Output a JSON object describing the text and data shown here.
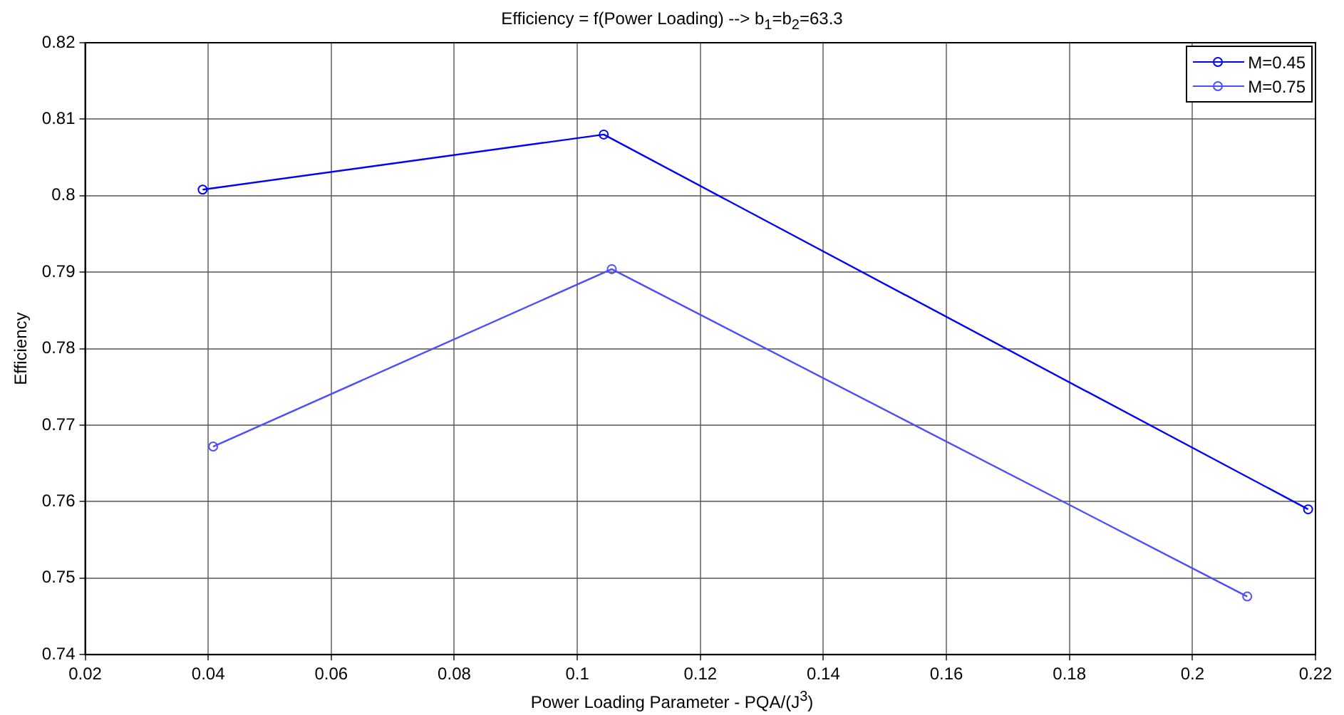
{
  "chart_data": {
    "type": "line",
    "title": "Efficiency = f(Power Loading) --> b$_{1}$=b$_{2}$=63.3",
    "xlabel": "Power Loading Parameter - PQA/(J$^{3}$)",
    "ylabel": "Efficiency",
    "xlim": [
      0.02,
      0.22
    ],
    "xticks": [
      0.02,
      0.04,
      0.06,
      0.08,
      0.1,
      0.12,
      0.14,
      0.16,
      0.18,
      0.2,
      0.22
    ],
    "ylim": [
      0.74,
      0.82
    ],
    "yticks": [
      0.74,
      0.75,
      0.76,
      0.77,
      0.78,
      0.79,
      0.8,
      0.81,
      0.82
    ],
    "grid": true,
    "legend": "top right",
    "marker": "circle",
    "line_style": "solid",
    "series": [
      {
        "name": "M=0.45",
        "color": "#0000ff",
        "x": [
          0.0391,
          0.1043,
          0.2188
        ],
        "values": [
          0.8008,
          0.808,
          0.759
        ]
      },
      {
        "name": "M=0.75",
        "color": "#4d4dff",
        "x": [
          0.0408,
          0.1056,
          0.2089
        ],
        "values": [
          0.7672,
          0.7904,
          0.7476
        ]
      }
    ]
  }
}
